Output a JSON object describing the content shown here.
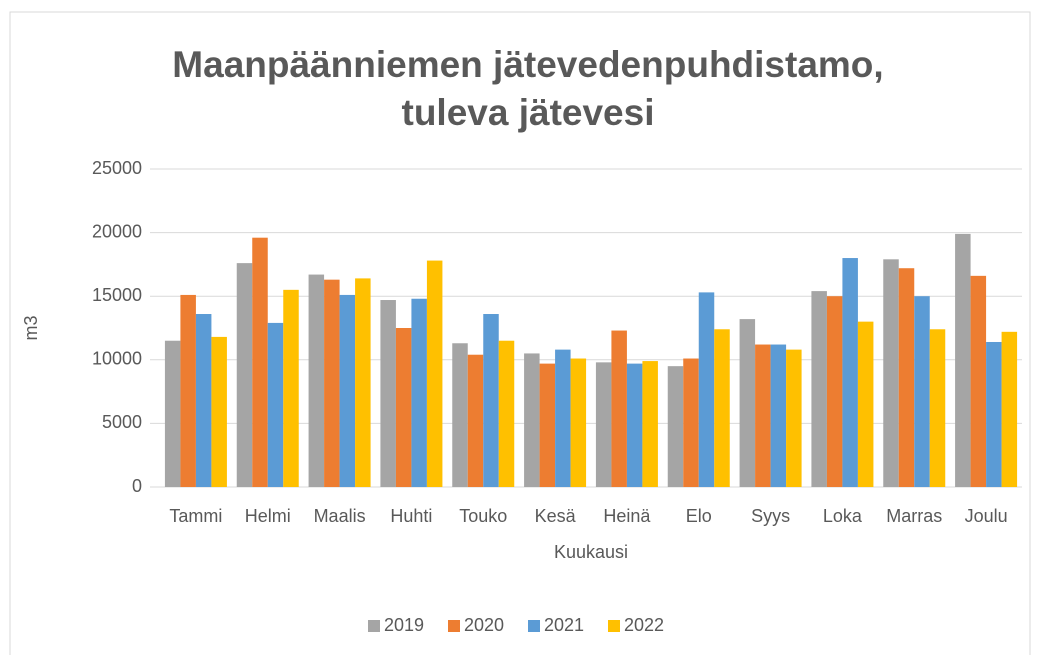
{
  "chart_data": {
    "type": "bar",
    "title": [
      "Maanpäänniemen jätevedenpuhdistamo,",
      "tuleva jätevesi"
    ],
    "x_label": "Kuukausi",
    "y_label": "m3",
    "categories": [
      "Tammi",
      "Helmi",
      "Maalis",
      "Huhti",
      "Touko",
      "Kesä",
      "Heinä",
      "Elo",
      "Syys",
      "Loka",
      "Marras",
      "Joulu"
    ],
    "series": [
      {
        "name": "2019",
        "color": "#a5a5a5",
        "values": [
          11500,
          17600,
          16700,
          14700,
          11300,
          10500,
          9800,
          9500,
          13200,
          15400,
          17900,
          19900
        ]
      },
      {
        "name": "2020",
        "color": "#ed7d31",
        "values": [
          15100,
          19600,
          16300,
          12500,
          10400,
          9700,
          12300,
          10100,
          11200,
          15000,
          17200,
          16600
        ]
      },
      {
        "name": "2021",
        "color": "#5b9bd5",
        "values": [
          13600,
          12900,
          15100,
          14800,
          13600,
          10800,
          9700,
          15300,
          11200,
          18000,
          15000,
          11400
        ]
      },
      {
        "name": "2022",
        "color": "#ffc000",
        "values": [
          11800,
          15500,
          16400,
          17800,
          11500,
          10100,
          9900,
          12400,
          10800,
          13000,
          12400,
          12200
        ]
      }
    ],
    "ylim": [
      0,
      25000
    ],
    "yticks": [
      0,
      5000,
      10000,
      15000,
      20000,
      25000
    ],
    "grid": true,
    "legend": "bottom"
  }
}
